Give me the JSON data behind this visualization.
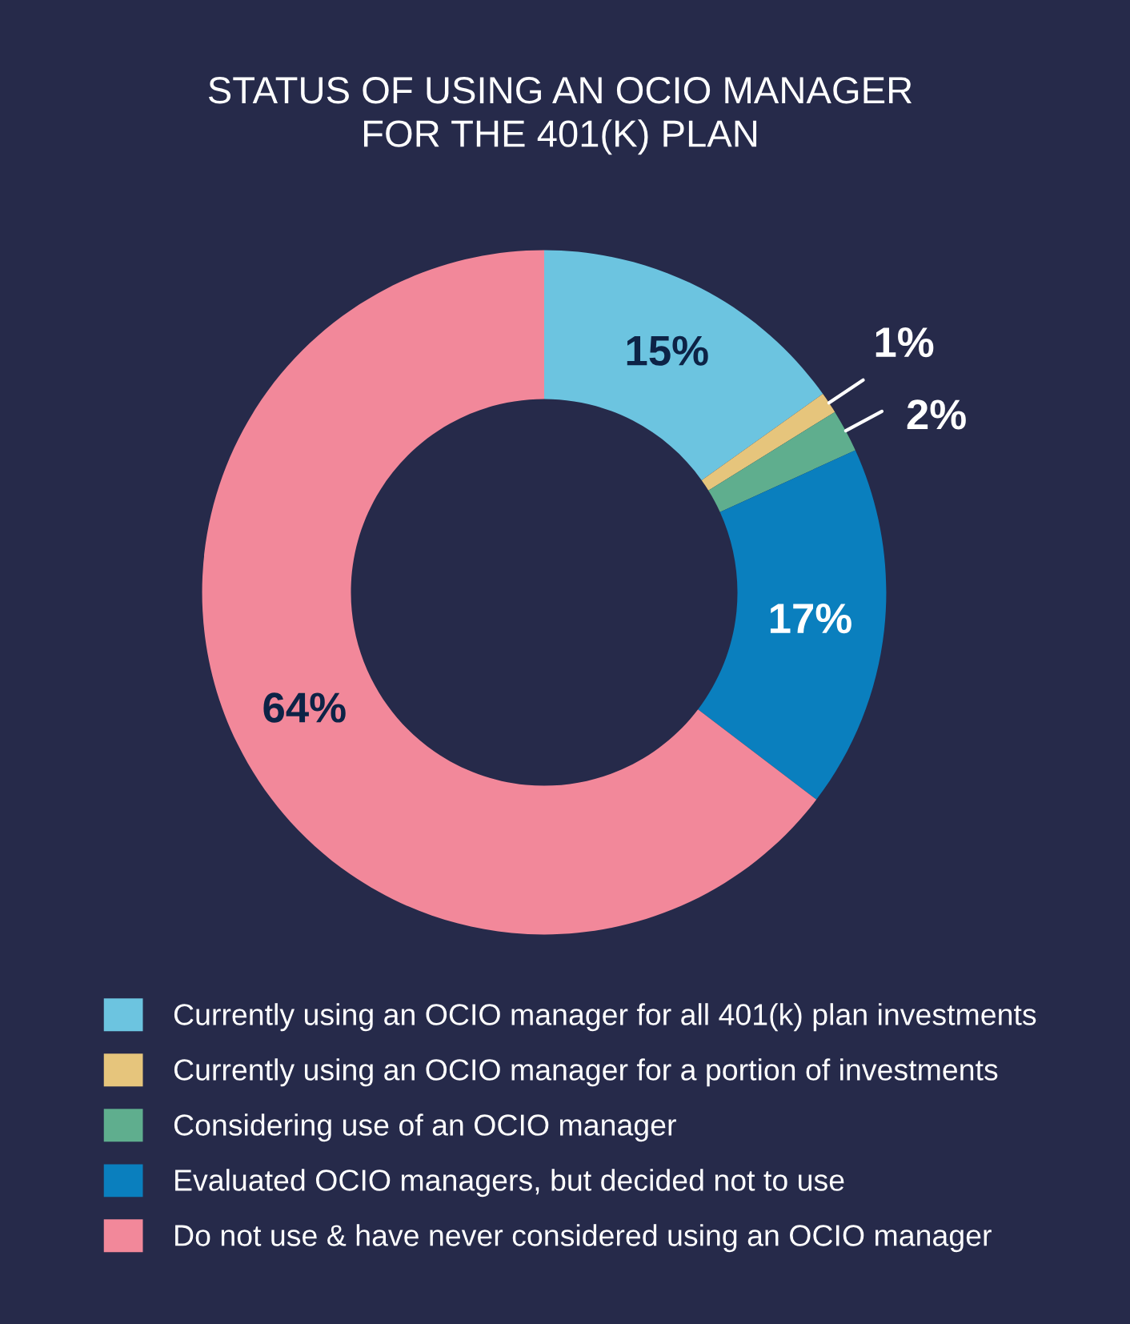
{
  "chart_data": {
    "type": "donut",
    "title": "STATUS OF USING AN OCIO MANAGER\nFOR THE 401(K) PLAN",
    "categories": [
      "Currently using an OCIO manager for all 401(k) plan investments",
      "Currently using an OCIO manager for a portion of investments",
      "Considering use of an OCIO manager",
      "Evaluated OCIO managers, but decided not to use",
      "Do not use & have never considered using an OCIO manager"
    ],
    "values": [
      15,
      1,
      2,
      17,
      64
    ],
    "colors": [
      "#6cc4e0",
      "#e6c57c",
      "#5fae8e",
      "#0a7fbe",
      "#f2889a"
    ],
    "value_labels": [
      "15%",
      "1%",
      "2%",
      "17%",
      "64%"
    ],
    "legend": "bottom"
  }
}
